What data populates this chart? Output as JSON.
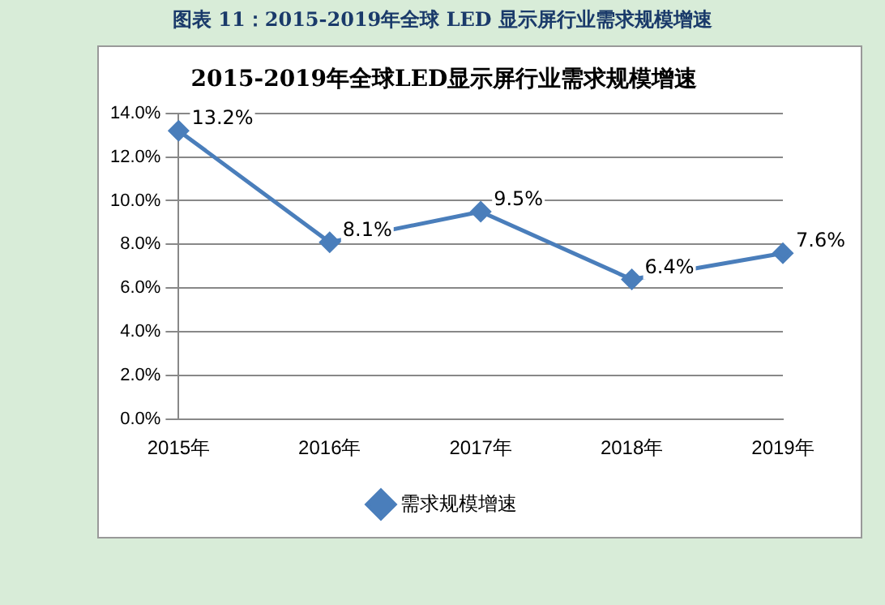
{
  "chart_data": {
    "type": "line",
    "title": "图表 11：2015-2019年全球 LED 显示屏行业需求规模增速",
    "subtitle": "2015-2019年全球LED显示屏行业需求规模增速",
    "categories": [
      "2015年",
      "2016年",
      "2017年",
      "2018年",
      "2019年"
    ],
    "series": [
      {
        "name": "需求规模增速",
        "color": "#4a7ebb",
        "values": [
          13.2,
          8.1,
          9.5,
          6.4,
          7.6
        ],
        "value_labels": [
          "13.2%",
          "8.1%",
          "9.5%",
          "6.4%",
          "7.6%"
        ]
      }
    ],
    "ylim": [
      0,
      14
    ],
    "yticks": [
      {
        "value": 0,
        "label": "0.0%"
      },
      {
        "value": 2,
        "label": "2.0%"
      },
      {
        "value": 4,
        "label": "4.0%"
      },
      {
        "value": 6,
        "label": "6.0%"
      },
      {
        "value": 8,
        "label": "8.0%"
      },
      {
        "value": 10,
        "label": "10.0%"
      },
      {
        "value": 12,
        "label": "12.0%"
      },
      {
        "value": 14,
        "label": "14.0%"
      }
    ],
    "grid": "y",
    "legend": "bottom",
    "marker": "diamond",
    "line_style": "solid"
  }
}
